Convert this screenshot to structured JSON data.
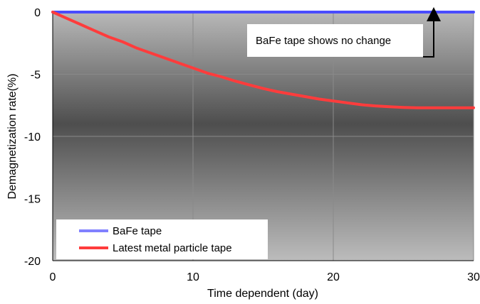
{
  "chart_data": {
    "type": "line",
    "title": "",
    "xlabel": "Time dependent (day)",
    "ylabel": "Demagnetization rate(%)",
    "xlim": [
      0,
      30
    ],
    "ylim": [
      -20,
      0
    ],
    "x_ticks": [
      "0",
      "10",
      "20",
      "30"
    ],
    "y_ticks": [
      "0",
      "-5",
      "-10",
      "-15",
      "-20"
    ],
    "grid": true,
    "legend_position": "bottom-left",
    "series": [
      {
        "name": "BaFe tape",
        "color": "#4a4cff",
        "points": [
          [
            0,
            0
          ],
          [
            30,
            0
          ]
        ]
      },
      {
        "name": "Latest metal particle tape",
        "color": "#ff3c3c",
        "points": [
          [
            0,
            0
          ],
          [
            1,
            -0.5
          ],
          [
            2,
            -1.0
          ],
          [
            3,
            -1.5
          ],
          [
            4,
            -2.0
          ],
          [
            5,
            -2.4
          ],
          [
            6,
            -2.9
          ],
          [
            7,
            -3.3
          ],
          [
            8,
            -3.7
          ],
          [
            9,
            -4.1
          ],
          [
            10,
            -4.5
          ],
          [
            11,
            -4.9
          ],
          [
            12,
            -5.2
          ],
          [
            13,
            -5.55
          ],
          [
            14,
            -5.85
          ],
          [
            15,
            -6.15
          ],
          [
            16,
            -6.4
          ],
          [
            17,
            -6.6
          ],
          [
            18,
            -6.8
          ],
          [
            19,
            -7.0
          ],
          [
            20,
            -7.15
          ],
          [
            21,
            -7.3
          ],
          [
            22,
            -7.45
          ],
          [
            23,
            -7.55
          ],
          [
            24,
            -7.62
          ],
          [
            25,
            -7.67
          ],
          [
            26,
            -7.7
          ],
          [
            27,
            -7.7
          ],
          [
            28,
            -7.7
          ],
          [
            29,
            -7.7
          ],
          [
            30,
            -7.7
          ]
        ]
      }
    ],
    "annotation": {
      "text": "BaFe tape shows no change",
      "x": 27.5,
      "y": 0
    }
  }
}
